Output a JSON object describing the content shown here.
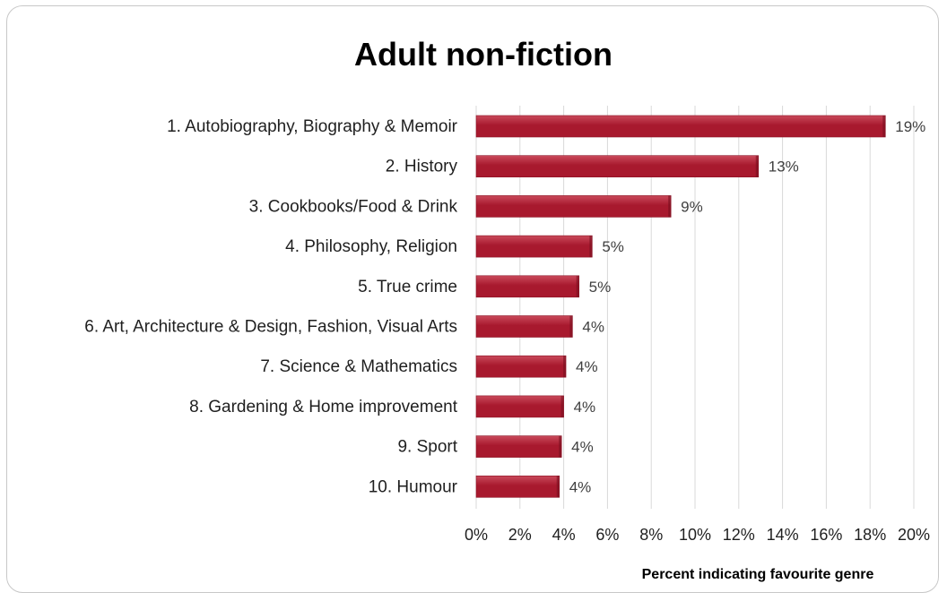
{
  "chart_data": {
    "type": "bar",
    "orientation": "horizontal",
    "title": "Adult non-fiction",
    "xlabel": "Percent indicating favourite genre",
    "ylabel": "",
    "categories": [
      "1. Autobiography, Biography & Memoir",
      "2. History",
      "3. Cookbooks/Food & Drink",
      "4. Philosophy, Religion",
      "5. True crime",
      "6. Art, Architecture & Design, Fashion, Visual Arts",
      "7. Science & Mathematics",
      "8. Gardening & Home improvement",
      "9. Sport",
      "10. Humour"
    ],
    "values": [
      18.7,
      12.9,
      8.9,
      5.3,
      4.7,
      4.4,
      4.1,
      4.0,
      3.9,
      3.8
    ],
    "value_labels": [
      "19%",
      "13%",
      "9%",
      "5%",
      "5%",
      "4%",
      "4%",
      "4%",
      "4%",
      "4%"
    ],
    "xlim": [
      0,
      20
    ],
    "x_ticks": [
      "0%",
      "2%",
      "4%",
      "6%",
      "8%",
      "10%",
      "12%",
      "14%",
      "16%",
      "18%",
      "20%"
    ],
    "grid": true,
    "legend": "none",
    "bar_color": "#a8192e",
    "bar_highlight_color": "#c94a5b"
  }
}
